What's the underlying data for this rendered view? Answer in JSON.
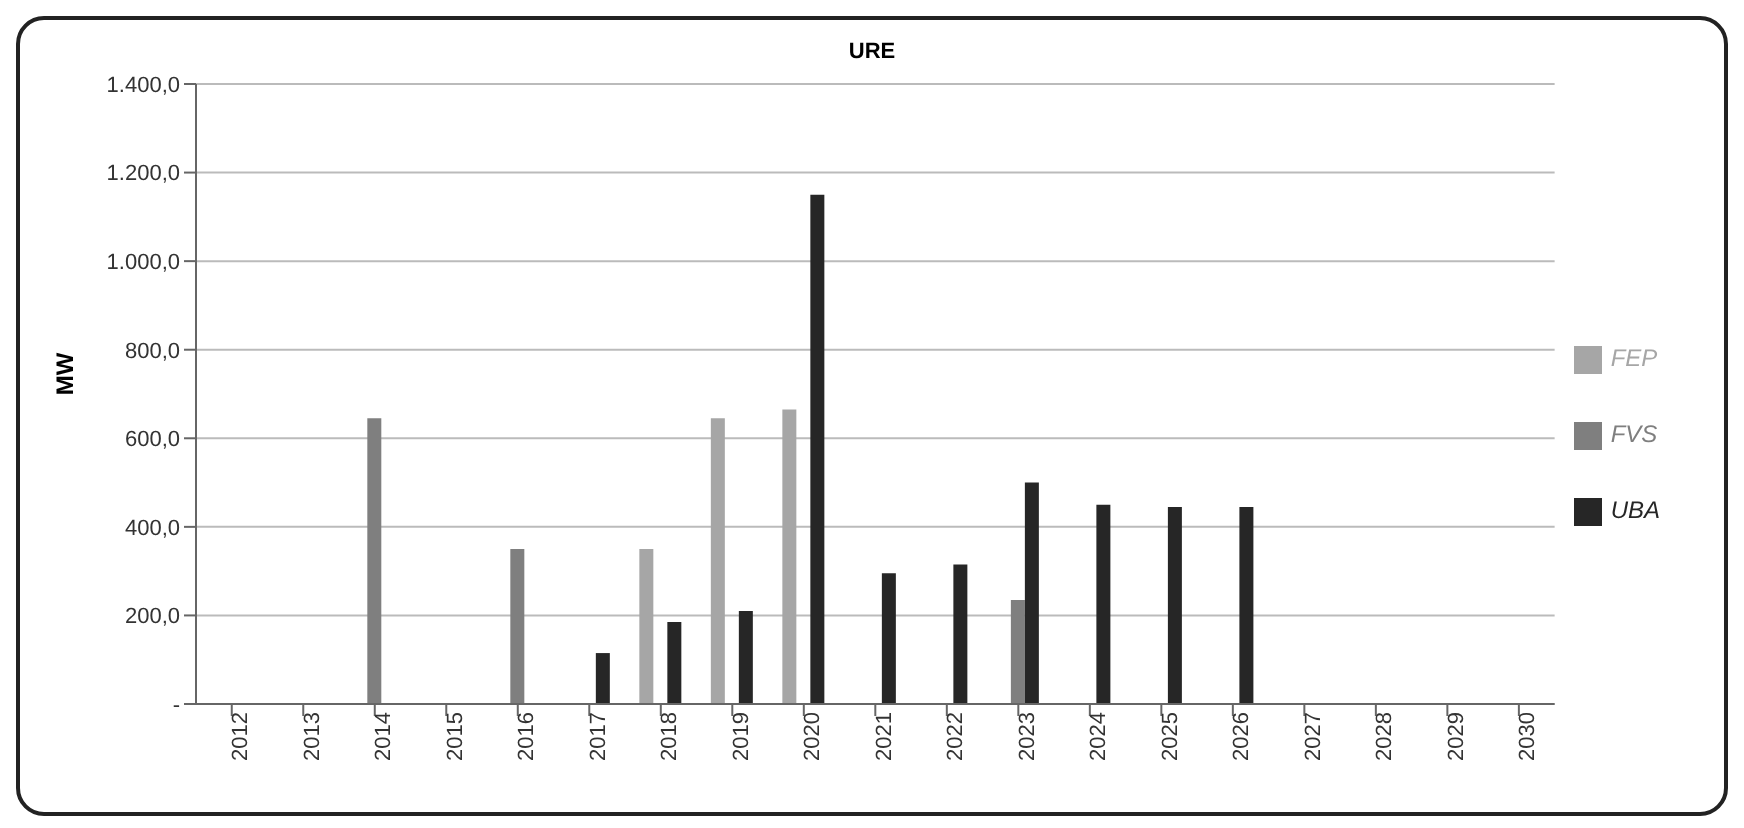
{
  "chart_data": {
    "type": "bar",
    "title": "URE",
    "ylabel": "MW",
    "categories": [
      "2012",
      "2013",
      "2014",
      "2015",
      "2016",
      "2017",
      "2018",
      "2019",
      "2020",
      "2021",
      "2022",
      "2023",
      "2024",
      "2025",
      "2026",
      "2027",
      "2028",
      "2029",
      "2030"
    ],
    "series": [
      {
        "name": "FEP",
        "color": "#a6a6a6",
        "values": [
          null,
          null,
          null,
          null,
          null,
          null,
          350,
          645,
          665,
          null,
          null,
          null,
          null,
          null,
          null,
          null,
          null,
          null,
          null
        ]
      },
      {
        "name": "FVS",
        "color": "#7f7f7f",
        "values": [
          null,
          null,
          645,
          null,
          350,
          null,
          null,
          null,
          null,
          null,
          null,
          235,
          null,
          null,
          null,
          null,
          null,
          null,
          null
        ]
      },
      {
        "name": "UBA",
        "color": "#262626",
        "values": [
          null,
          null,
          null,
          null,
          null,
          115,
          185,
          210,
          1150,
          295,
          315,
          500,
          450,
          445,
          445,
          null,
          null,
          null,
          null
        ]
      }
    ],
    "ylim": [
      0,
      1400
    ],
    "yticks": [
      {
        "value": 0,
        "label": "-"
      },
      {
        "value": 200,
        "label": "200,0"
      },
      {
        "value": 400,
        "label": "400,0"
      },
      {
        "value": 600,
        "label": "600,0"
      },
      {
        "value": 800,
        "label": "800,0"
      },
      {
        "value": 1000,
        "label": "1.000,0"
      },
      {
        "value": 1200,
        "label": "1.200,0"
      },
      {
        "value": 1400,
        "label": "1.400,0"
      }
    ],
    "grid": "y",
    "legend": "right"
  }
}
